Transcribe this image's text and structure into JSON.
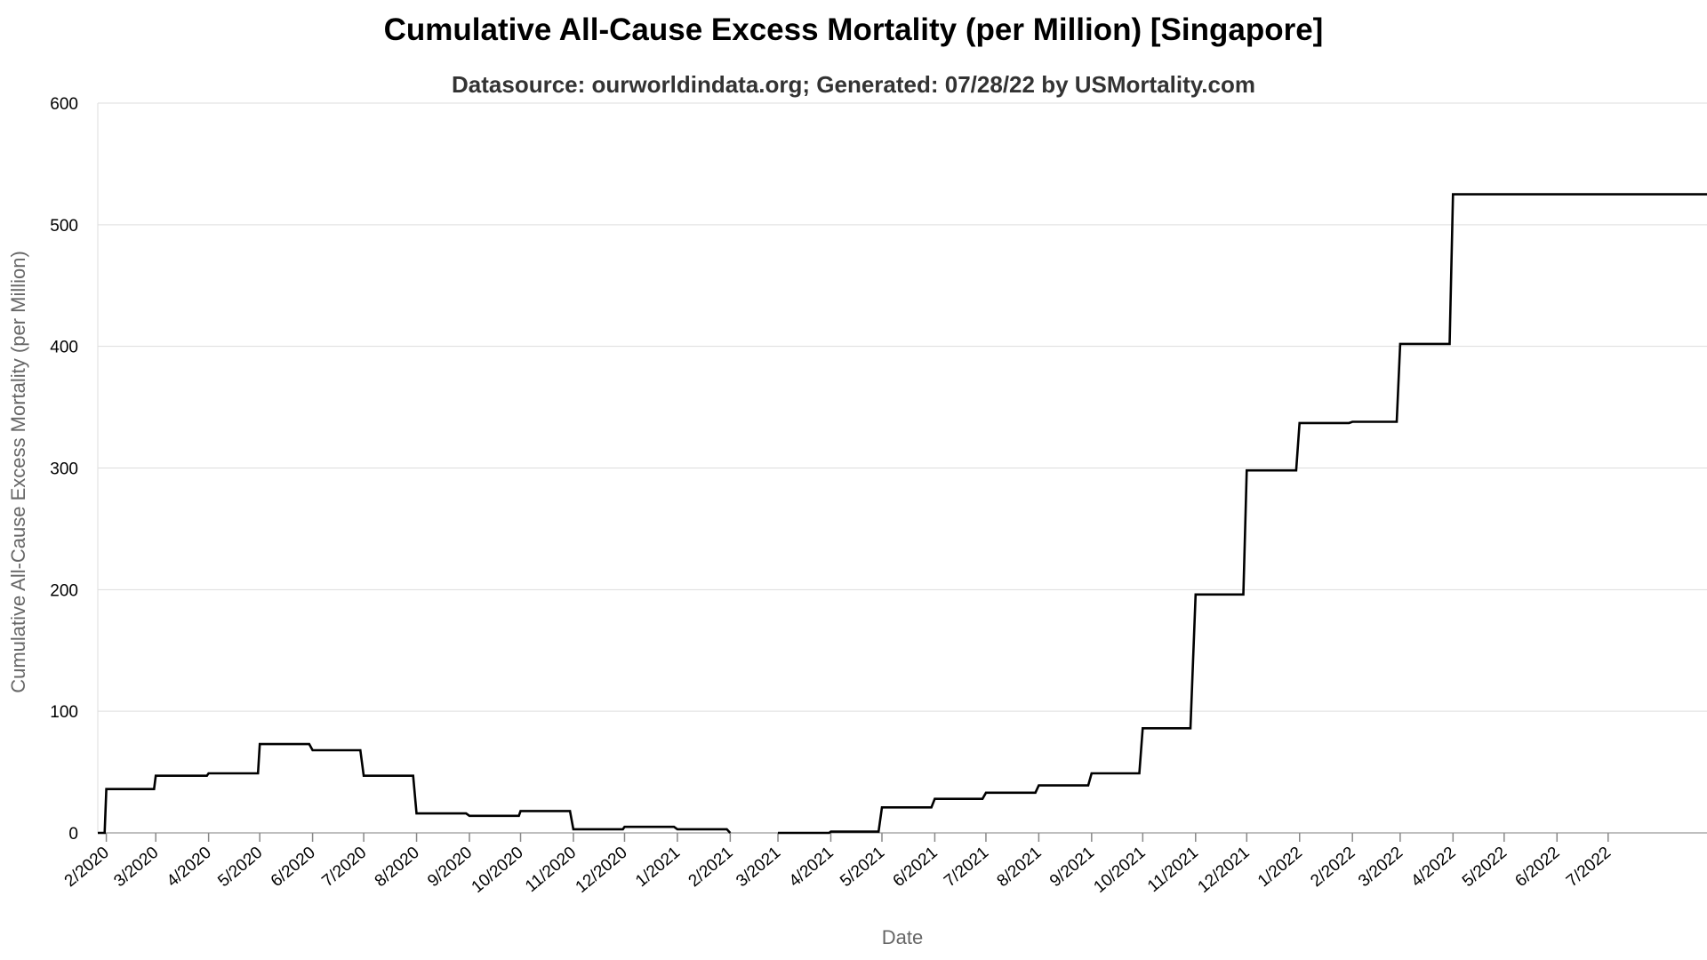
{
  "chart_data": {
    "type": "line",
    "title": "Cumulative All-Cause Excess Mortality (per Million) [Singapore]",
    "subtitle": "Datasource: ourworldindata.org; Generated: 07/28/22 by USMortality.com",
    "xlabel": "Date",
    "ylabel": "Cumulative All-Cause Excess Mortality (per Million)",
    "ylim": [
      0,
      600
    ],
    "yticks": [
      0,
      100,
      200,
      300,
      400,
      500,
      600
    ],
    "xlim": [
      "2020-01-27",
      "2022-08-28"
    ],
    "x_ticks": [
      {
        "date": "2020-02-01",
        "label": "2/2020"
      },
      {
        "date": "2020-03-01",
        "label": "3/2020"
      },
      {
        "date": "2020-04-01",
        "label": "4/2020"
      },
      {
        "date": "2020-05-01",
        "label": "5/2020"
      },
      {
        "date": "2020-06-01",
        "label": "6/2020"
      },
      {
        "date": "2020-07-01",
        "label": "7/2020"
      },
      {
        "date": "2020-08-01",
        "label": "8/2020"
      },
      {
        "date": "2020-09-01",
        "label": "9/2020"
      },
      {
        "date": "2020-10-01",
        "label": "10/2020"
      },
      {
        "date": "2020-11-01",
        "label": "11/2020"
      },
      {
        "date": "2020-12-01",
        "label": "12/2020"
      },
      {
        "date": "2021-01-01",
        "label": "1/2021"
      },
      {
        "date": "2021-02-01",
        "label": "2/2021"
      },
      {
        "date": "2021-03-01",
        "label": "3/2021"
      },
      {
        "date": "2021-04-01",
        "label": "4/2021"
      },
      {
        "date": "2021-05-01",
        "label": "5/2021"
      },
      {
        "date": "2021-06-01",
        "label": "6/2021"
      },
      {
        "date": "2021-07-01",
        "label": "7/2021"
      },
      {
        "date": "2021-08-01",
        "label": "8/2021"
      },
      {
        "date": "2021-09-01",
        "label": "9/2021"
      },
      {
        "date": "2021-10-01",
        "label": "10/2021"
      },
      {
        "date": "2021-11-01",
        "label": "11/2021"
      },
      {
        "date": "2021-12-01",
        "label": "12/2021"
      },
      {
        "date": "2022-01-01",
        "label": "1/2022"
      },
      {
        "date": "2022-02-01",
        "label": "2/2022"
      },
      {
        "date": "2022-03-01",
        "label": "3/2022"
      },
      {
        "date": "2022-04-01",
        "label": "4/2022"
      },
      {
        "date": "2022-05-01",
        "label": "5/2022"
      },
      {
        "date": "2022-06-01",
        "label": "6/2022"
      },
      {
        "date": "2022-07-01",
        "label": "7/2022"
      }
    ],
    "line_color": "#000000",
    "grid": true,
    "series": [
      {
        "segments": [
          {
            "x": [
              "2020-01-27",
              "2020-01-31",
              "2020-02-01",
              "2020-02-29",
              "2020-03-01",
              "2020-03-31",
              "2020-04-01",
              "2020-04-30",
              "2020-05-01",
              "2020-05-30",
              "2020-06-01",
              "2020-06-29",
              "2020-07-01",
              "2020-07-30",
              "2020-08-01",
              "2020-08-30",
              "2020-09-01",
              "2020-09-30",
              "2020-10-01",
              "2020-10-30",
              "2020-11-01",
              "2020-11-30",
              "2020-12-01",
              "2020-12-30",
              "2021-01-01",
              "2021-01-30",
              "2021-02-01"
            ],
            "y": [
              0,
              0,
              36,
              36,
              47,
              47,
              49,
              49,
              73,
              73,
              68,
              68,
              47,
              47,
              16,
              16,
              14,
              14,
              18,
              18,
              3,
              3,
              5,
              5,
              3,
              3,
              0
            ]
          },
          {
            "x": [
              "2021-03-01",
              "2021-03-31",
              "2021-04-01",
              "2021-04-29",
              "2021-05-01",
              "2021-05-30",
              "2021-06-01",
              "2021-06-29",
              "2021-07-01",
              "2021-07-30",
              "2021-08-01",
              "2021-08-30",
              "2021-09-01",
              "2021-09-29",
              "2021-10-01",
              "2021-10-29",
              "2021-11-01",
              "2021-11-29",
              "2021-12-01",
              "2021-12-30",
              "2022-01-01",
              "2022-01-30",
              "2022-02-01",
              "2022-02-27",
              "2022-03-01",
              "2022-03-30",
              "2022-04-01",
              "2022-08-28"
            ],
            "y": [
              0,
              0,
              1,
              1,
              21,
              21,
              28,
              28,
              33,
              33,
              39,
              39,
              49,
              49,
              86,
              86,
              196,
              196,
              298,
              298,
              337,
              337,
              338,
              338,
              402,
              402,
              525,
              525
            ]
          }
        ]
      }
    ]
  }
}
